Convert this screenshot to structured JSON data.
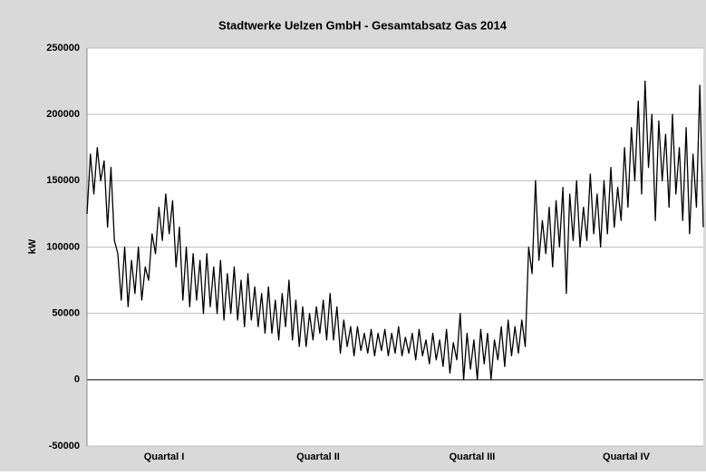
{
  "chart_data": {
    "type": "line",
    "title": "Stadtwerke Uelzen GmbH  - Gesamtabsatz Gas 2014",
    "y_label": "kW",
    "x_axis_labels": [
      "Quartal I",
      "Quartal II",
      "Quartal III",
      "Quartal IV"
    ],
    "color": "#000000",
    "ylim": [
      -50000,
      250000
    ],
    "yticks": [
      -50000,
      0,
      50000,
      100000,
      150000,
      200000,
      250000
    ],
    "grid": true,
    "values": [
      125000,
      170000,
      140000,
      175000,
      150000,
      165000,
      115000,
      160000,
      105000,
      95000,
      60000,
      100000,
      55000,
      90000,
      65000,
      100000,
      60000,
      85000,
      75000,
      110000,
      95000,
      130000,
      105000,
      140000,
      110000,
      135000,
      85000,
      115000,
      60000,
      100000,
      55000,
      95000,
      60000,
      90000,
      50000,
      95000,
      55000,
      85000,
      50000,
      90000,
      45000,
      80000,
      50000,
      85000,
      45000,
      75000,
      40000,
      80000,
      45000,
      70000,
      40000,
      65000,
      35000,
      70000,
      35000,
      60000,
      30000,
      65000,
      40000,
      75000,
      30000,
      60000,
      25000,
      55000,
      25000,
      50000,
      30000,
      55000,
      35000,
      60000,
      30000,
      65000,
      30000,
      55000,
      20000,
      45000,
      25000,
      40000,
      18000,
      40000,
      22000,
      35000,
      20000,
      38000,
      18000,
      35000,
      22000,
      38000,
      18000,
      35000,
      20000,
      40000,
      18000,
      32000,
      20000,
      35000,
      15000,
      38000,
      18000,
      30000,
      12000,
      35000,
      15000,
      30000,
      10000,
      38000,
      5000,
      28000,
      15000,
      50000,
      0,
      35000,
      8000,
      30000,
      0,
      38000,
      12000,
      35000,
      0,
      30000,
      15000,
      40000,
      10000,
      45000,
      18000,
      40000,
      20000,
      45000,
      25000,
      100000,
      80000,
      150000,
      90000,
      120000,
      95000,
      130000,
      85000,
      135000,
      100000,
      145000,
      65000,
      140000,
      105000,
      150000,
      100000,
      130000,
      105000,
      155000,
      110000,
      140000,
      100000,
      150000,
      110000,
      160000,
      115000,
      145000,
      120000,
      175000,
      130000,
      190000,
      150000,
      210000,
      140000,
      225000,
      160000,
      200000,
      120000,
      195000,
      150000,
      185000,
      130000,
      200000,
      140000,
      175000,
      120000,
      190000,
      110000,
      170000,
      130000,
      222000,
      115000
    ]
  }
}
